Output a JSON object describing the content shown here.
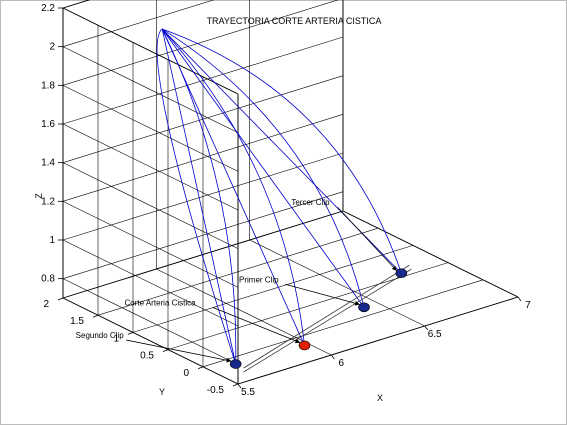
{
  "chart_data": {
    "type": "line",
    "projection": "3d",
    "title": "TRAYECTORIA CORTE ARTERIA CISTICA",
    "xlabel": "X",
    "ylabel": "Y",
    "zlabel": "Z",
    "xlim": [
      5.5,
      7
    ],
    "ylim": [
      -0.5,
      2
    ],
    "zlim": [
      0.7,
      2.2
    ],
    "xticks": [
      "5.5",
      "6",
      "6.5",
      "7"
    ],
    "yticks": [
      "-0.5",
      "0",
      "0.5",
      "1",
      "1.5",
      "2"
    ],
    "zticks": [
      "0.8",
      "1",
      "1.2",
      "1.4",
      "1.6",
      "1.8",
      "2",
      "2.2"
    ],
    "grid": true,
    "line_color": "#0000cc",
    "origin": {
      "x": 5.75,
      "y": 1.25,
      "z": 2.15
    },
    "points": [
      {
        "name": "Segundo Clip",
        "x": 5.6,
        "y": -0.2,
        "z": 0.72,
        "marker_color": "#1a2a8c"
      },
      {
        "name": "Corte Arteria Cistica",
        "x": 5.95,
        "y": -0.25,
        "z": 0.72,
        "marker_color": "#e02000"
      },
      {
        "name": "Primer Clip",
        "x": 6.4,
        "y": 0.1,
        "z": 0.72,
        "marker_color": "#1a2a8c"
      },
      {
        "name": "Tercer Clip",
        "x": 6.75,
        "y": 0.5,
        "z": 0.72,
        "marker_color": "#1a2a8c"
      }
    ],
    "annotations": [
      {
        "text": "Segundo Clip",
        "target": "Segundo Clip"
      },
      {
        "text": "Corte Arteria Cistica",
        "target": "Corte Arteria Cistica"
      },
      {
        "text": "Primer Clip",
        "target": "Primer Clip"
      },
      {
        "text": "Tercer Clip",
        "target": "Tercer Clip"
      }
    ]
  }
}
